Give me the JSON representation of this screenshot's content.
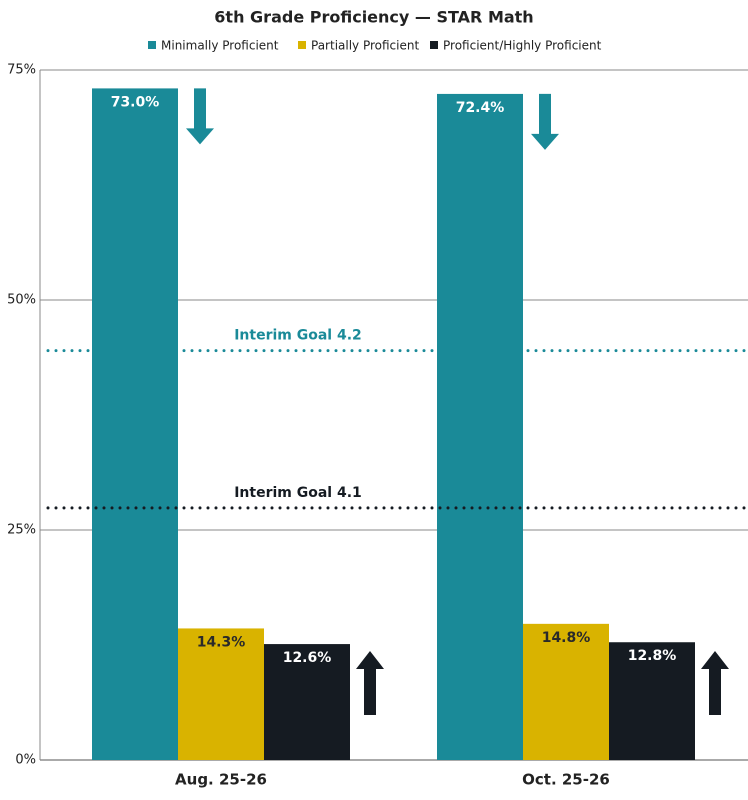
{
  "chart_data": {
    "type": "bar",
    "title": "6th Grade Proficiency — STAR Math",
    "categories": [
      "Aug. 25-26",
      "Oct. 25-26"
    ],
    "series": [
      {
        "name": "Minimally Proficient",
        "color": "#1a8a98",
        "label_color": "#ffffff",
        "values": [
          73.0,
          72.4
        ],
        "value_labels": [
          "73.0%",
          "72.4%"
        ]
      },
      {
        "name": "Partially Proficient",
        "color": "#d9b300",
        "label_color": "#2a2a2a",
        "values": [
          14.3,
          14.8
        ],
        "value_labels": [
          "14.3%",
          "14.8%"
        ]
      },
      {
        "name": "Proficient/Highly Proficient",
        "color": "#151b22",
        "label_color": "#ffffff",
        "values": [
          12.6,
          12.8
        ],
        "value_labels": [
          "12.6%",
          "12.8%"
        ]
      }
    ],
    "ylim": [
      0,
      75
    ],
    "yticks": [
      {
        "value": 0,
        "label": "0%"
      },
      {
        "value": 25,
        "label": "25%"
      },
      {
        "value": 50,
        "label": "50%"
      },
      {
        "value": 75,
        "label": "75%"
      }
    ],
    "grid": true,
    "reference_lines": [
      {
        "label": "Interim Goal 4.2",
        "value": 44.5,
        "color": "#1a8a98"
      },
      {
        "label": "Interim Goal 4.1",
        "value": 27.4,
        "color": "#151b22"
      }
    ]
  }
}
